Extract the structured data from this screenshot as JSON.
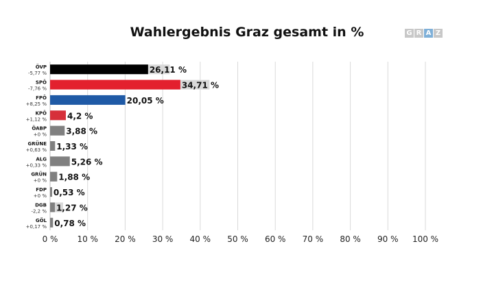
{
  "chart_data": {
    "type": "bar",
    "orientation": "horizontal",
    "title": "Wahlergebnis Graz gesamt in %",
    "categories": [
      "ÖVP",
      "SPÖ",
      "FPÖ",
      "KPÖ",
      "ÖABP",
      "GRÜNE",
      "ALG",
      "GRÜN",
      "FDP",
      "DGB",
      "GÖL"
    ],
    "changes": [
      "-5,77 %",
      "-7,76 %",
      "+8,25 %",
      "+1,12 %",
      "+0 %",
      "+0,63 %",
      "+0,33 %",
      "+0 %",
      "+0 %",
      "-2,2 %",
      "+0,17 %"
    ],
    "series": [
      {
        "values": [
          26.11,
          34.71,
          20.05,
          4.2,
          3.88,
          1.33,
          5.26,
          1.88,
          0.53,
          1.27,
          0.78
        ]
      },
      {
        "values": [
          31.88,
          42.47,
          11.8,
          3.08,
          3.88,
          0.7,
          4.93,
          1.88,
          0.53,
          3.47,
          0.61
        ]
      }
    ],
    "value_labels": [
      "26,11 %",
      "34,71 %",
      "20,05 %",
      "4,2 %",
      "3,88 %",
      "1,33 %",
      "5,26 %",
      "1,88 %",
      "0,53 %",
      "1,27 %",
      "0,78 %"
    ],
    "colors": [
      "#000000",
      "#e3202e",
      "#1f5aa6",
      "#d6303a",
      "#808080",
      "#808080",
      "#808080",
      "#808080",
      "#808080",
      "#808080",
      "#808080"
    ],
    "previous_color": "#d9d9d9",
    "xlim": [
      0,
      100
    ],
    "xticks": [
      0,
      10,
      20,
      30,
      40,
      50,
      60,
      70,
      80,
      90,
      100
    ],
    "xtick_labels": [
      "0 %",
      "10 %",
      "20 %",
      "30 %",
      "40 %",
      "50 %",
      "60 %",
      "70 %",
      "80 %",
      "90 %",
      "100 %"
    ],
    "grid": true
  },
  "logo": {
    "letters": [
      "G",
      "R",
      "A",
      "Z"
    ],
    "colors": [
      "#c8c8c8",
      "#c8c8c8",
      "#7fb0d8",
      "#c8c8c8"
    ]
  }
}
